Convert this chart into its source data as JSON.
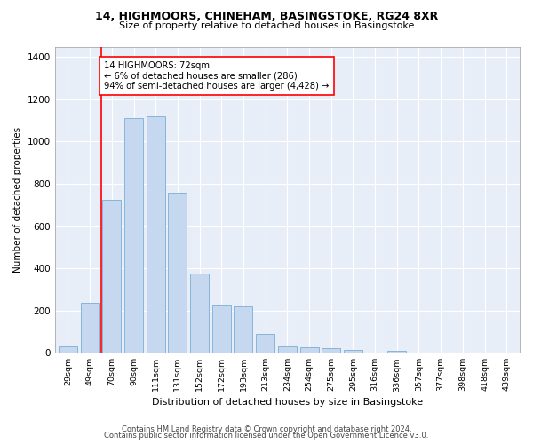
{
  "title_line1": "14, HIGHMOORS, CHINEHAM, BASINGSTOKE, RG24 8XR",
  "title_line2": "Size of property relative to detached houses in Basingstoke",
  "xlabel": "Distribution of detached houses by size in Basingstoke",
  "ylabel": "Number of detached properties",
  "bar_labels": [
    "29sqm",
    "49sqm",
    "70sqm",
    "90sqm",
    "111sqm",
    "131sqm",
    "152sqm",
    "172sqm",
    "193sqm",
    "213sqm",
    "234sqm",
    "254sqm",
    "275sqm",
    "295sqm",
    "316sqm",
    "336sqm",
    "357sqm",
    "377sqm",
    "398sqm",
    "418sqm",
    "439sqm"
  ],
  "bar_values": [
    30,
    235,
    725,
    1110,
    1120,
    760,
    375,
    225,
    220,
    88,
    30,
    25,
    20,
    15,
    0,
    10,
    0,
    0,
    0,
    0,
    0
  ],
  "bar_color": "#c5d8f0",
  "bar_edge_color": "#7aadd4",
  "background_color": "#e8eef8",
  "grid_color": "#ffffff",
  "annotation_box_text": "14 HIGHMOORS: 72sqm\n← 6% of detached houses are smaller (286)\n94% of semi-detached houses are larger (4,428) →",
  "redline_x": 1.5,
  "ylim": [
    0,
    1450
  ],
  "yticks": [
    0,
    200,
    400,
    600,
    800,
    1000,
    1200,
    1400
  ],
  "footer_line1": "Contains HM Land Registry data © Crown copyright and database right 2024.",
  "footer_line2": "Contains public sector information licensed under the Open Government Licence v3.0."
}
